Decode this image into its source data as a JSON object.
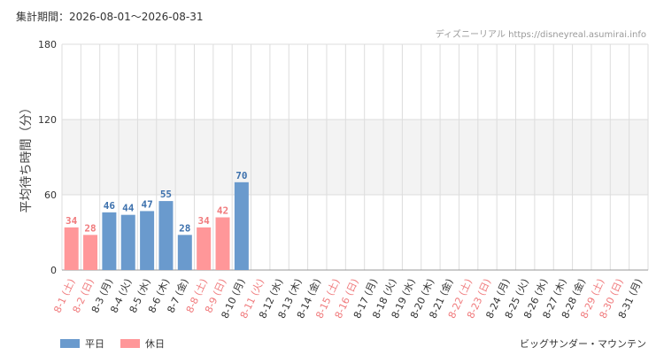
{
  "header": {
    "period_label": "集計期間：2026-08-01～2026-08-31",
    "credit": "ディズニーリアル https://disneyreal.asumirai.info"
  },
  "footer": {
    "attraction": "ビッグサンダー・マウンテン"
  },
  "colors": {
    "weekday": "#6a9acd",
    "holiday": "#ff9799",
    "weekday_text": "#3d71ad",
    "holiday_text": "#f07a7c",
    "band": "#f3f3f3",
    "grid": "#dddddd"
  },
  "chart_data": {
    "type": "bar",
    "ylabel": "平均待ち時間（分）",
    "ylim": [
      0,
      180
    ],
    "yticks": [
      0,
      60,
      120,
      180
    ],
    "shaded_band": [
      60,
      120
    ],
    "grid": true,
    "legend": [
      {
        "key": "weekday",
        "label": "平日"
      },
      {
        "key": "holiday",
        "label": "休日"
      }
    ],
    "categories": [
      "8-1 (土)",
      "8-2 (日)",
      "8-3 (月)",
      "8-4 (火)",
      "8-5 (水)",
      "8-6 (木)",
      "8-7 (金)",
      "8-8 (土)",
      "8-9 (日)",
      "8-10 (月)",
      "8-11 (火)",
      "8-12 (水)",
      "8-13 (木)",
      "8-14 (金)",
      "8-15 (土)",
      "8-16 (日)",
      "8-17 (月)",
      "8-18 (火)",
      "8-19 (水)",
      "8-20 (木)",
      "8-21 (金)",
      "8-22 (土)",
      "8-23 (日)",
      "8-24 (月)",
      "8-25 (火)",
      "8-26 (水)",
      "8-27 (木)",
      "8-28 (金)",
      "8-29 (土)",
      "8-30 (日)",
      "8-31 (月)"
    ],
    "day_types": [
      "holiday",
      "holiday",
      "weekday",
      "weekday",
      "weekday",
      "weekday",
      "weekday",
      "holiday",
      "holiday",
      "weekday",
      "holiday",
      "weekday",
      "weekday",
      "weekday",
      "holiday",
      "holiday",
      "weekday",
      "weekday",
      "weekday",
      "weekday",
      "weekday",
      "holiday",
      "holiday",
      "weekday",
      "weekday",
      "weekday",
      "weekday",
      "weekday",
      "holiday",
      "holiday",
      "weekday"
    ],
    "values": [
      34,
      28,
      46,
      44,
      47,
      55,
      28,
      34,
      42,
      70,
      null,
      null,
      null,
      null,
      null,
      null,
      null,
      null,
      null,
      null,
      null,
      null,
      null,
      null,
      null,
      null,
      null,
      null,
      null,
      null,
      null
    ]
  }
}
